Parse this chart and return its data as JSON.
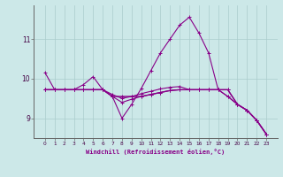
{
  "xlabel": "Windchill (Refroidissement éolien,°C)",
  "ylabel": "",
  "background_color": "#cce8e8",
  "line_color": "#880088",
  "grid_color": "#aacccc",
  "x": [
    0,
    1,
    2,
    3,
    4,
    5,
    6,
    7,
    8,
    9,
    10,
    11,
    12,
    13,
    14,
    15,
    16,
    17,
    18,
    19,
    20,
    21,
    22,
    23
  ],
  "line1": [
    10.15,
    9.72,
    9.72,
    9.72,
    9.85,
    10.05,
    9.72,
    9.55,
    9.0,
    9.35,
    9.75,
    10.2,
    10.65,
    11.0,
    11.35,
    11.55,
    11.15,
    10.65,
    9.72,
    9.72,
    9.35,
    9.2,
    8.95,
    8.6
  ],
  "line2": [
    9.72,
    9.72,
    9.72,
    9.72,
    9.72,
    9.72,
    9.72,
    9.55,
    9.55,
    9.55,
    9.55,
    9.6,
    9.65,
    9.7,
    9.72,
    9.72,
    9.72,
    9.72,
    9.72,
    9.72,
    9.35,
    9.2,
    8.95,
    8.6
  ],
  "line3": [
    9.72,
    9.72,
    9.72,
    9.72,
    9.72,
    9.72,
    9.72,
    9.6,
    9.5,
    9.55,
    9.62,
    9.68,
    9.74,
    9.78,
    9.8,
    9.72,
    9.72,
    9.72,
    9.72,
    9.55,
    9.35,
    9.2,
    8.95,
    8.6
  ],
  "line4": [
    9.72,
    9.72,
    9.72,
    9.72,
    9.72,
    9.72,
    9.72,
    9.55,
    9.4,
    9.48,
    9.55,
    9.6,
    9.65,
    9.7,
    9.72,
    9.72,
    9.72,
    9.72,
    9.72,
    9.55,
    9.35,
    9.2,
    8.95,
    8.6
  ],
  "ylim": [
    8.5,
    11.85
  ],
  "yticks": [
    9,
    10,
    11
  ],
  "xticks": [
    0,
    1,
    2,
    3,
    4,
    5,
    6,
    7,
    8,
    9,
    10,
    11,
    12,
    13,
    14,
    15,
    16,
    17,
    18,
    19,
    20,
    21,
    22,
    23
  ]
}
